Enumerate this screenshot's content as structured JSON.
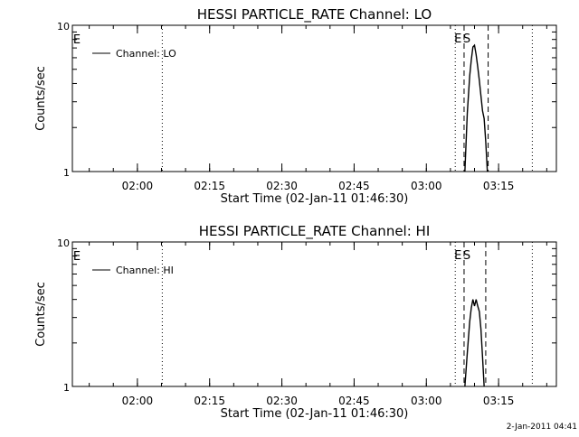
{
  "chart_data": [
    {
      "type": "line",
      "title": "HESSI PARTICLE_RATE Channel: LO",
      "xlabel": "Start Time (02-Jan-11 01:46:30)",
      "ylabel": "Counts/sec",
      "y_scale": "log",
      "ylim": [
        1,
        10
      ],
      "xlim": [
        "01:46:30",
        "03:27:00"
      ],
      "y_tick_labels": [
        "10",
        "1"
      ],
      "x_tick_labels": [
        "02:00",
        "02:15",
        "02:30",
        "02:45",
        "03:00",
        "03:15"
      ],
      "legend": {
        "placement": "top-left",
        "entries": [
          "Channel: LO"
        ]
      },
      "grid": false,
      "series": [
        {
          "name": "Channel: LO",
          "x": [
            "03:08:00",
            "03:08:30",
            "03:09:00",
            "03:09:20",
            "03:09:40",
            "03:10:00",
            "03:10:20",
            "03:10:40",
            "03:11:00",
            "03:11:20",
            "03:11:40",
            "03:12:00",
            "03:12:20",
            "03:12:40"
          ],
          "y": [
            1.0,
            2.5,
            4.5,
            5.8,
            7.1,
            7.3,
            6.3,
            5.2,
            4.2,
            3.3,
            2.6,
            2.3,
            1.6,
            1.0
          ]
        }
      ],
      "vertical_lines": [
        {
          "x": "02:05:10",
          "style": "dotted",
          "label": ""
        },
        {
          "x": "03:06:00",
          "style": "dotted",
          "label": "E"
        },
        {
          "x": "03:07:50",
          "style": "dashed",
          "label": "S"
        },
        {
          "x": "03:12:50",
          "style": "dashed",
          "label": ""
        },
        {
          "x": "03:22:00",
          "style": "dotted",
          "label": ""
        }
      ],
      "left_edge_marker": "E"
    },
    {
      "type": "line",
      "title": "HESSI PARTICLE_RATE Channel: HI",
      "xlabel": "Start Time (02-Jan-11 01:46:30)",
      "ylabel": "Counts/sec",
      "y_scale": "log",
      "ylim": [
        1,
        10
      ],
      "xlim": [
        "01:46:30",
        "03:27:00"
      ],
      "y_tick_labels": [
        "10",
        "1"
      ],
      "x_tick_labels": [
        "02:00",
        "02:15",
        "02:30",
        "02:45",
        "03:00",
        "03:15"
      ],
      "legend": {
        "placement": "top-left",
        "entries": [
          "Channel: HI"
        ]
      },
      "grid": false,
      "series": [
        {
          "name": "Channel: HI",
          "x": [
            "03:08:00",
            "03:08:30",
            "03:09:00",
            "03:09:20",
            "03:09:40",
            "03:10:00",
            "03:10:20",
            "03:10:40",
            "03:11:00",
            "03:11:20",
            "03:11:40",
            "03:12:00"
          ],
          "y": [
            1.0,
            1.7,
            2.8,
            3.5,
            4.0,
            3.6,
            4.0,
            3.6,
            3.3,
            2.5,
            1.6,
            1.0
          ]
        }
      ],
      "vertical_lines": [
        {
          "x": "02:05:10",
          "style": "dotted",
          "label": ""
        },
        {
          "x": "03:06:00",
          "style": "dotted",
          "label": "E"
        },
        {
          "x": "03:07:50",
          "style": "dashed",
          "label": "S"
        },
        {
          "x": "03:12:20",
          "style": "dashed",
          "label": ""
        },
        {
          "x": "03:22:00",
          "style": "dotted",
          "label": ""
        }
      ],
      "left_edge_marker": "E"
    }
  ],
  "footer_stamp": "2-Jan-2011 04:41"
}
